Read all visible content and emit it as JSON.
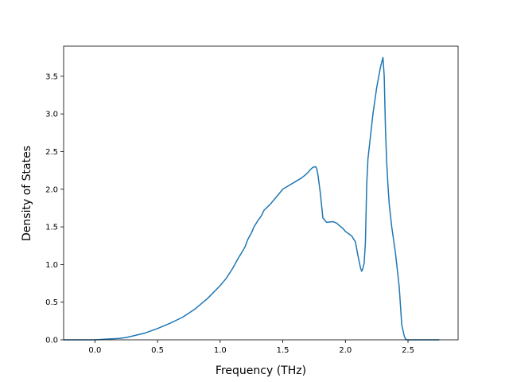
{
  "chart_data": {
    "type": "line",
    "title": "",
    "xlabel": "Frequency (THz)",
    "ylabel": "Density of States",
    "xlim": [
      -0.25,
      2.9
    ],
    "ylim": [
      0.0,
      3.9
    ],
    "xticks": [
      0.0,
      0.5,
      1.0,
      1.5,
      2.0,
      2.5
    ],
    "xtick_labels": [
      "0.0",
      "0.5",
      "1.0",
      "1.5",
      "2.0",
      "2.5"
    ],
    "yticks": [
      0.0,
      0.5,
      1.0,
      1.5,
      2.0,
      2.5,
      3.0,
      3.5
    ],
    "ytick_labels": [
      "0.0",
      "0.5",
      "1.0",
      "1.5",
      "2.0",
      "2.5",
      "3.0",
      "3.5"
    ],
    "grid": false,
    "legend": "none",
    "colors": {
      "line": "#1f77b4"
    },
    "series": [
      {
        "x": [
          -0.25,
          0.0,
          0.1,
          0.15,
          0.2,
          0.25,
          0.3,
          0.35,
          0.4,
          0.5,
          0.6,
          0.7,
          0.8,
          0.9,
          1.0,
          1.05,
          1.1,
          1.15,
          1.18,
          1.2,
          1.22,
          1.25,
          1.27,
          1.3,
          1.33,
          1.35,
          1.4,
          1.45,
          1.5,
          1.55,
          1.6,
          1.65,
          1.68,
          1.7,
          1.72,
          1.74,
          1.76,
          1.77,
          1.78,
          1.8,
          1.82,
          1.85,
          1.9,
          1.93,
          1.95,
          1.98,
          2.0,
          2.05,
          2.08,
          2.1,
          2.12,
          2.13,
          2.14,
          2.15,
          2.16,
          2.17,
          2.18,
          2.19,
          2.2,
          2.22,
          2.25,
          2.28,
          2.3,
          2.31,
          2.32,
          2.33,
          2.34,
          2.35,
          2.37,
          2.4,
          2.43,
          2.45,
          2.47,
          2.48,
          2.49,
          2.5,
          2.52,
          2.6,
          2.7,
          2.75
        ],
        "y": [
          0.0,
          0.0,
          0.01,
          0.015,
          0.02,
          0.03,
          0.05,
          0.07,
          0.09,
          0.15,
          0.22,
          0.3,
          0.41,
          0.55,
          0.72,
          0.82,
          0.95,
          1.1,
          1.18,
          1.24,
          1.33,
          1.42,
          1.5,
          1.58,
          1.65,
          1.72,
          1.8,
          1.9,
          2.0,
          2.05,
          2.1,
          2.15,
          2.19,
          2.22,
          2.26,
          2.29,
          2.3,
          2.28,
          2.2,
          1.95,
          1.62,
          1.56,
          1.57,
          1.55,
          1.52,
          1.48,
          1.44,
          1.38,
          1.3,
          1.12,
          0.96,
          0.91,
          0.95,
          1.02,
          1.3,
          2.05,
          2.4,
          2.55,
          2.7,
          3.0,
          3.35,
          3.62,
          3.75,
          3.5,
          2.8,
          2.35,
          2.05,
          1.8,
          1.5,
          1.15,
          0.7,
          0.2,
          0.05,
          0.01,
          0.0,
          0.0,
          0.0,
          0.0,
          0.0,
          0.0
        ]
      }
    ]
  }
}
